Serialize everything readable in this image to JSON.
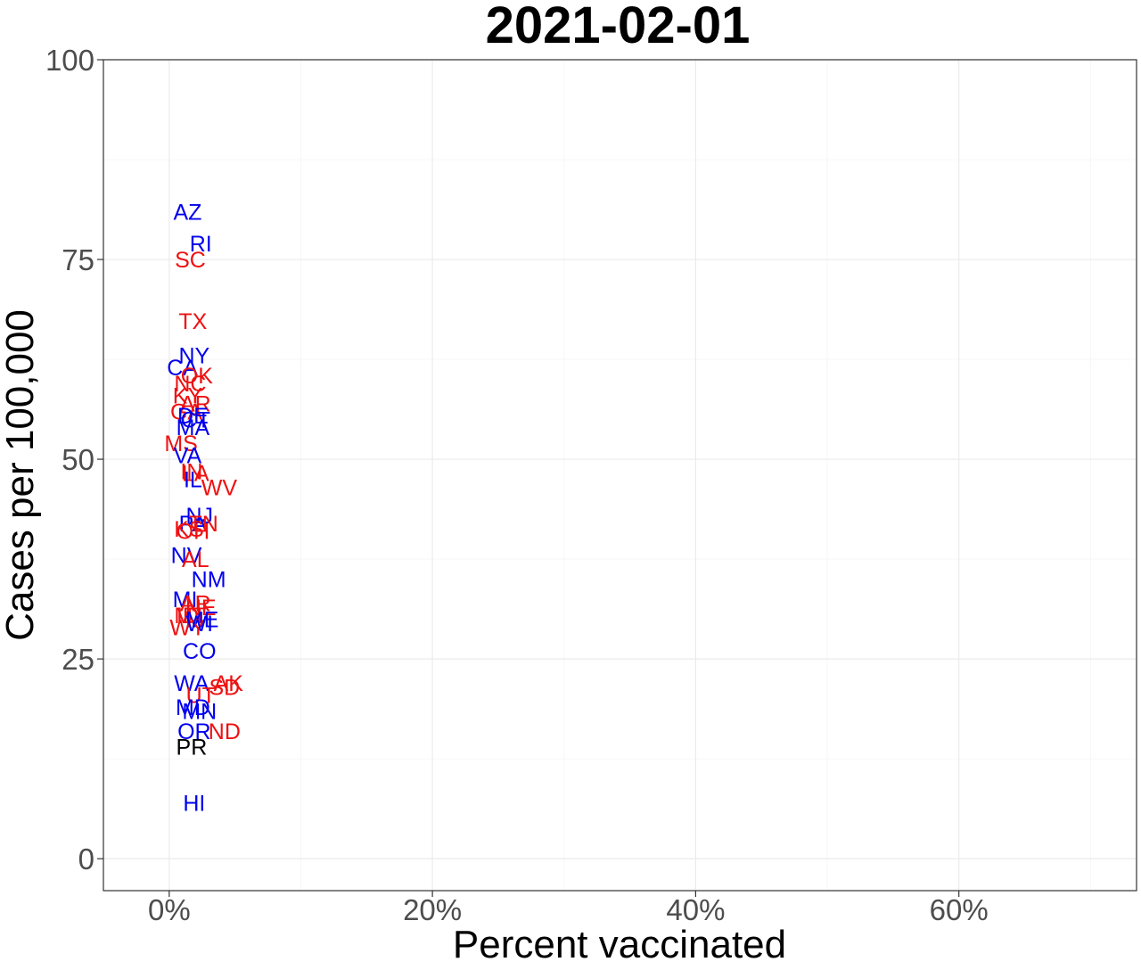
{
  "chart_data": {
    "type": "scatter",
    "title": "2021-02-01",
    "xlabel": "Percent vaccinated",
    "ylabel": "Cases per 100,000",
    "xlim": [
      -0.05,
      0.735
    ],
    "ylim": [
      -4,
      100
    ],
    "x_ticks": [
      0,
      0.2,
      0.4,
      0.6
    ],
    "x_tick_labels": [
      "0%",
      "20%",
      "40%",
      "60%"
    ],
    "y_ticks": [
      0,
      25,
      50,
      75,
      100
    ],
    "y_tick_labels": [
      "0",
      "25",
      "50",
      "75",
      "100"
    ],
    "grid": true,
    "legend": "none",
    "colors": {
      "blue": "#0000ee",
      "red": "#ee1111",
      "black": "#000000"
    },
    "points": [
      {
        "label": "AZ",
        "x": 0.014,
        "y": 81.0,
        "color": "blue"
      },
      {
        "label": "RI",
        "x": 0.024,
        "y": 77.0,
        "color": "blue"
      },
      {
        "label": "SC",
        "x": 0.016,
        "y": 75.0,
        "color": "red"
      },
      {
        "label": "TX",
        "x": 0.018,
        "y": 67.3,
        "color": "red"
      },
      {
        "label": "NY",
        "x": 0.019,
        "y": 63.0,
        "color": "blue"
      },
      {
        "label": "CA",
        "x": 0.01,
        "y": 61.5,
        "color": "blue"
      },
      {
        "label": "OK",
        "x": 0.021,
        "y": 60.5,
        "color": "red"
      },
      {
        "label": "NC",
        "x": 0.016,
        "y": 59.5,
        "color": "red"
      },
      {
        "label": "KY",
        "x": 0.014,
        "y": 58.0,
        "color": "red"
      },
      {
        "label": "AR",
        "x": 0.02,
        "y": 57.0,
        "color": "red"
      },
      {
        "label": "GA",
        "x": 0.013,
        "y": 56.0,
        "color": "red"
      },
      {
        "label": "DE",
        "x": 0.018,
        "y": 55.5,
        "color": "blue"
      },
      {
        "label": "CT",
        "x": 0.02,
        "y": 55.0,
        "color": "blue"
      },
      {
        "label": "MA",
        "x": 0.018,
        "y": 54.0,
        "color": "blue"
      },
      {
        "label": "MS",
        "x": 0.009,
        "y": 52.0,
        "color": "red"
      },
      {
        "label": "VA",
        "x": 0.014,
        "y": 50.5,
        "color": "blue"
      },
      {
        "label": "IN",
        "x": 0.017,
        "y": 48.5,
        "color": "red"
      },
      {
        "label": "LA",
        "x": 0.02,
        "y": 48.3,
        "color": "red"
      },
      {
        "label": "IL",
        "x": 0.018,
        "y": 47.5,
        "color": "blue"
      },
      {
        "label": "WV",
        "x": 0.038,
        "y": 46.5,
        "color": "red"
      },
      {
        "label": "NJ",
        "x": 0.023,
        "y": 43.0,
        "color": "blue"
      },
      {
        "label": "PA",
        "x": 0.018,
        "y": 42.0,
        "color": "blue"
      },
      {
        "label": "TN",
        "x": 0.026,
        "y": 42.0,
        "color": "red"
      },
      {
        "label": "KS",
        "x": 0.015,
        "y": 41.3,
        "color": "red"
      },
      {
        "label": "OH",
        "x": 0.018,
        "y": 41.0,
        "color": "red"
      },
      {
        "label": "NV",
        "x": 0.013,
        "y": 38.0,
        "color": "blue"
      },
      {
        "label": "AL",
        "x": 0.02,
        "y": 37.5,
        "color": "red"
      },
      {
        "label": "NM",
        "x": 0.03,
        "y": 35.0,
        "color": "blue"
      },
      {
        "label": "MI",
        "x": 0.012,
        "y": 32.5,
        "color": "blue"
      },
      {
        "label": "AR2",
        "text": "AR",
        "x": 0.02,
        "y": 32.0,
        "color": "red"
      },
      {
        "label": "NE",
        "x": 0.024,
        "y": 31.5,
        "color": "red"
      },
      {
        "label": "MT",
        "x": 0.016,
        "y": 30.5,
        "color": "red"
      },
      {
        "label": "ME",
        "x": 0.025,
        "y": 30.0,
        "color": "blue"
      },
      {
        "label": "ID",
        "x": 0.014,
        "y": 30.5,
        "color": "red"
      },
      {
        "label": "WY",
        "x": 0.014,
        "y": 29.0,
        "color": "red"
      },
      {
        "label": "WI",
        "x": 0.023,
        "y": 29.5,
        "color": "blue"
      },
      {
        "label": "CO",
        "x": 0.023,
        "y": 26.0,
        "color": "blue"
      },
      {
        "label": "WA",
        "x": 0.017,
        "y": 22.0,
        "color": "blue"
      },
      {
        "label": "AK",
        "x": 0.045,
        "y": 22.0,
        "color": "red"
      },
      {
        "label": "SD",
        "x": 0.042,
        "y": 21.5,
        "color": "red"
      },
      {
        "label": "UT",
        "x": 0.024,
        "y": 20.5,
        "color": "red"
      },
      {
        "label": "MD",
        "x": 0.018,
        "y": 19.0,
        "color": "blue"
      },
      {
        "label": "MN",
        "x": 0.023,
        "y": 18.5,
        "color": "blue"
      },
      {
        "label": "ND",
        "x": 0.042,
        "y": 16.0,
        "color": "red"
      },
      {
        "label": "OR",
        "x": 0.019,
        "y": 16.0,
        "color": "blue"
      },
      {
        "label": "PR",
        "x": 0.017,
        "y": 14.0,
        "color": "black"
      },
      {
        "label": "HI",
        "x": 0.019,
        "y": 7.0,
        "color": "blue"
      }
    ]
  }
}
